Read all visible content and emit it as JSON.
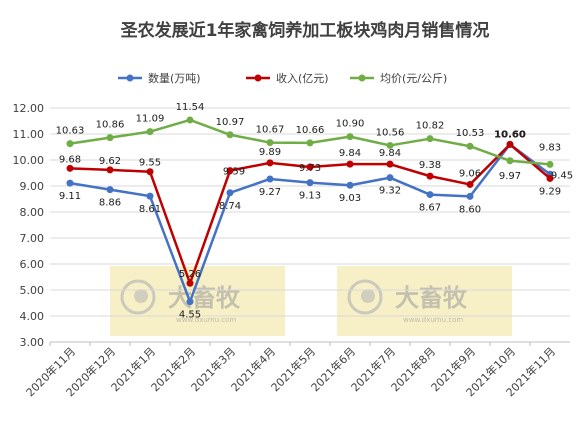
{
  "chart_data": {
    "type": "line",
    "title": "圣农发展近1年家禽饲养加工板块鸡肉月销售情况",
    "categories": [
      "2020年11月",
      "2020年12月",
      "2021年1月",
      "2021年2月",
      "2021年3月",
      "2021年4月",
      "2021年5月",
      "2021年6月",
      "2021年7月",
      "2021年8月",
      "2021年9月",
      "2021年10月",
      "2021年11月"
    ],
    "ylim": [
      3.0,
      12.0
    ],
    "yticks": [
      "3.00",
      "4.00",
      "5.00",
      "6.00",
      "7.00",
      "8.00",
      "9.00",
      "10.00",
      "11.00",
      "12.00"
    ],
    "grid": true,
    "legend_position": "top",
    "series": [
      {
        "name": "数量(万吨)",
        "color": "#4472C4",
        "values": [
          9.11,
          8.86,
          8.61,
          4.55,
          8.74,
          9.27,
          9.13,
          9.03,
          9.32,
          8.67,
          8.6,
          10.6,
          9.45
        ],
        "labels": [
          "9.11",
          "8.86",
          "8.61",
          "4.55",
          "8.74",
          "9.27",
          "9.13",
          "9.03",
          "9.32",
          "8.67",
          "8.60",
          "10.60",
          "9.45"
        ]
      },
      {
        "name": "收入(亿元)",
        "color": "#C00000",
        "values": [
          9.68,
          9.62,
          9.55,
          5.26,
          9.59,
          9.89,
          9.73,
          9.84,
          9.84,
          9.38,
          9.06,
          10.6,
          9.29
        ],
        "labels": [
          "9.68",
          "9.62",
          "9.55",
          "5.26",
          "9.59",
          "9.89",
          "9.73",
          "9.84",
          "9.84",
          "9.38",
          "9.06",
          "10.60",
          "9.29"
        ]
      },
      {
        "name": "均价(元/公斤)",
        "color": "#70AD47",
        "values": [
          10.63,
          10.86,
          11.09,
          11.54,
          10.97,
          10.67,
          10.66,
          10.9,
          10.56,
          10.82,
          10.53,
          9.97,
          9.83
        ],
        "labels": [
          "10.63",
          "10.86",
          "11.09",
          "11.54",
          "10.97",
          "10.67",
          "10.66",
          "10.90",
          "10.56",
          "10.82",
          "10.53",
          "9.97",
          "9.83"
        ]
      }
    ]
  },
  "watermark": {
    "brand": "大畜牧",
    "url": "www.dxumu.com"
  }
}
